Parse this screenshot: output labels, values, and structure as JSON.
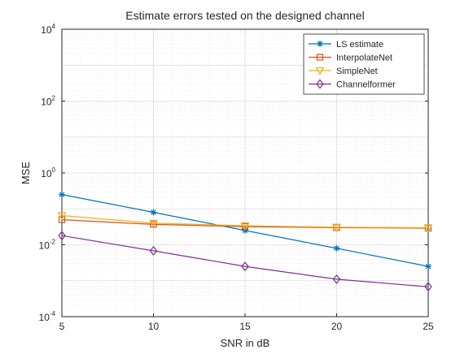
{
  "chart_data": {
    "type": "line",
    "title": "Estimate errors tested on the designed channel",
    "xlabel": "SNR in dB",
    "ylabel": "MSE",
    "x": [
      5,
      10,
      15,
      20,
      25
    ],
    "xlim": [
      5,
      25
    ],
    "ylim": [
      0.0001,
      10000
    ],
    "yscale": "log",
    "grid": true,
    "minor_grid": true,
    "legend_position": "top-right",
    "x_ticks": [
      "5",
      "10",
      "15",
      "20",
      "25"
    ],
    "y_ticks": [
      {
        "value": 0.0001,
        "base": "10",
        "exp": "-4"
      },
      {
        "value": 0.01,
        "base": "10",
        "exp": "-2"
      },
      {
        "value": 1,
        "base": "10",
        "exp": "0"
      },
      {
        "value": 100,
        "base": "10",
        "exp": "2"
      },
      {
        "value": 10000,
        "base": "10",
        "exp": "4"
      }
    ],
    "series": [
      {
        "name": "LS estimate",
        "values": [
          0.25,
          0.08,
          0.025,
          0.008,
          0.0025
        ],
        "color": "#0072BD",
        "marker": "asterisk"
      },
      {
        "name": "InterpolateNet",
        "values": [
          0.05,
          0.037,
          0.032,
          0.03,
          0.029
        ],
        "color": "#D95319",
        "marker": "square"
      },
      {
        "name": "SimpleNet",
        "values": [
          0.065,
          0.04,
          0.034,
          0.031,
          0.03
        ],
        "color": "#EDB120",
        "marker": "triangle-down"
      },
      {
        "name": "Channelformer",
        "values": [
          0.018,
          0.0068,
          0.0025,
          0.0011,
          0.00068
        ],
        "color": "#7E2F8E",
        "marker": "diamond"
      }
    ]
  }
}
